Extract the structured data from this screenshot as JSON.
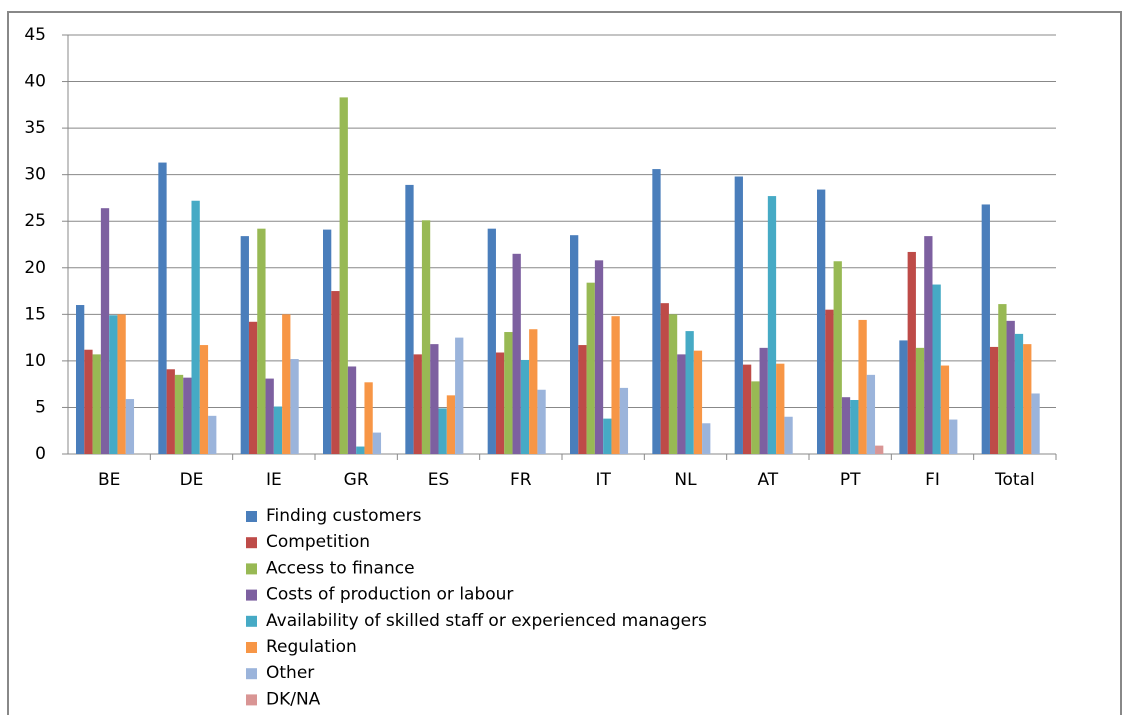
{
  "chart_data": {
    "type": "bar",
    "categories": [
      "BE",
      "DE",
      "IE",
      "GR",
      "ES",
      "FR",
      "IT",
      "NL",
      "AT",
      "PT",
      "FI",
      "Total"
    ],
    "series": [
      {
        "name": "Finding customers",
        "color": "#4a7ebb",
        "values": [
          16,
          31.3,
          23.4,
          24.1,
          28.9,
          24.2,
          23.5,
          30.6,
          29.8,
          28.4,
          12.2,
          26.8
        ]
      },
      {
        "name": "Competition",
        "color": "#be4b48",
        "values": [
          11.2,
          9.1,
          14.2,
          17.5,
          10.7,
          10.9,
          11.7,
          16.2,
          9.6,
          15.5,
          21.7,
          11.5
        ]
      },
      {
        "name": "Access to finance",
        "color": "#98b954",
        "values": [
          10.7,
          8.5,
          24.2,
          38.3,
          25.1,
          13.1,
          18.4,
          15,
          7.8,
          20.7,
          11.4,
          16.1
        ]
      },
      {
        "name": "Costs of production or labour",
        "color": "#7d60a0",
        "values": [
          26.4,
          8.2,
          8.1,
          9.4,
          11.8,
          21.5,
          20.8,
          10.7,
          11.4,
          6.1,
          23.4,
          14.3
        ]
      },
      {
        "name": "Availability of skilled staff or experienced managers",
        "color": "#46aac5",
        "values": [
          14.9,
          27.2,
          5.1,
          0.8,
          4.9,
          10.1,
          3.8,
          13.2,
          27.7,
          5.8,
          18.2,
          12.9
        ]
      },
      {
        "name": "Regulation",
        "color": "#f79646",
        "values": [
          15,
          11.7,
          15,
          7.7,
          6.3,
          13.4,
          14.8,
          11.1,
          9.7,
          14.4,
          9.5,
          11.8
        ]
      },
      {
        "name": "Other",
        "color": "#9bb4db",
        "values": [
          5.9,
          4.1,
          10.2,
          2.3,
          12.5,
          6.9,
          7.1,
          3.3,
          4,
          8.5,
          3.7,
          6.5
        ]
      },
      {
        "name": "DK/NA",
        "color": "#d99594",
        "values": [
          0,
          0,
          0,
          0,
          0,
          0,
          0,
          0,
          0,
          0.9,
          0,
          0
        ]
      }
    ],
    "ylim": [
      0,
      45
    ],
    "yticks": [
      0,
      5,
      10,
      15,
      20,
      25,
      30,
      35,
      40,
      45
    ],
    "grid": true,
    "legend": "bottom"
  }
}
